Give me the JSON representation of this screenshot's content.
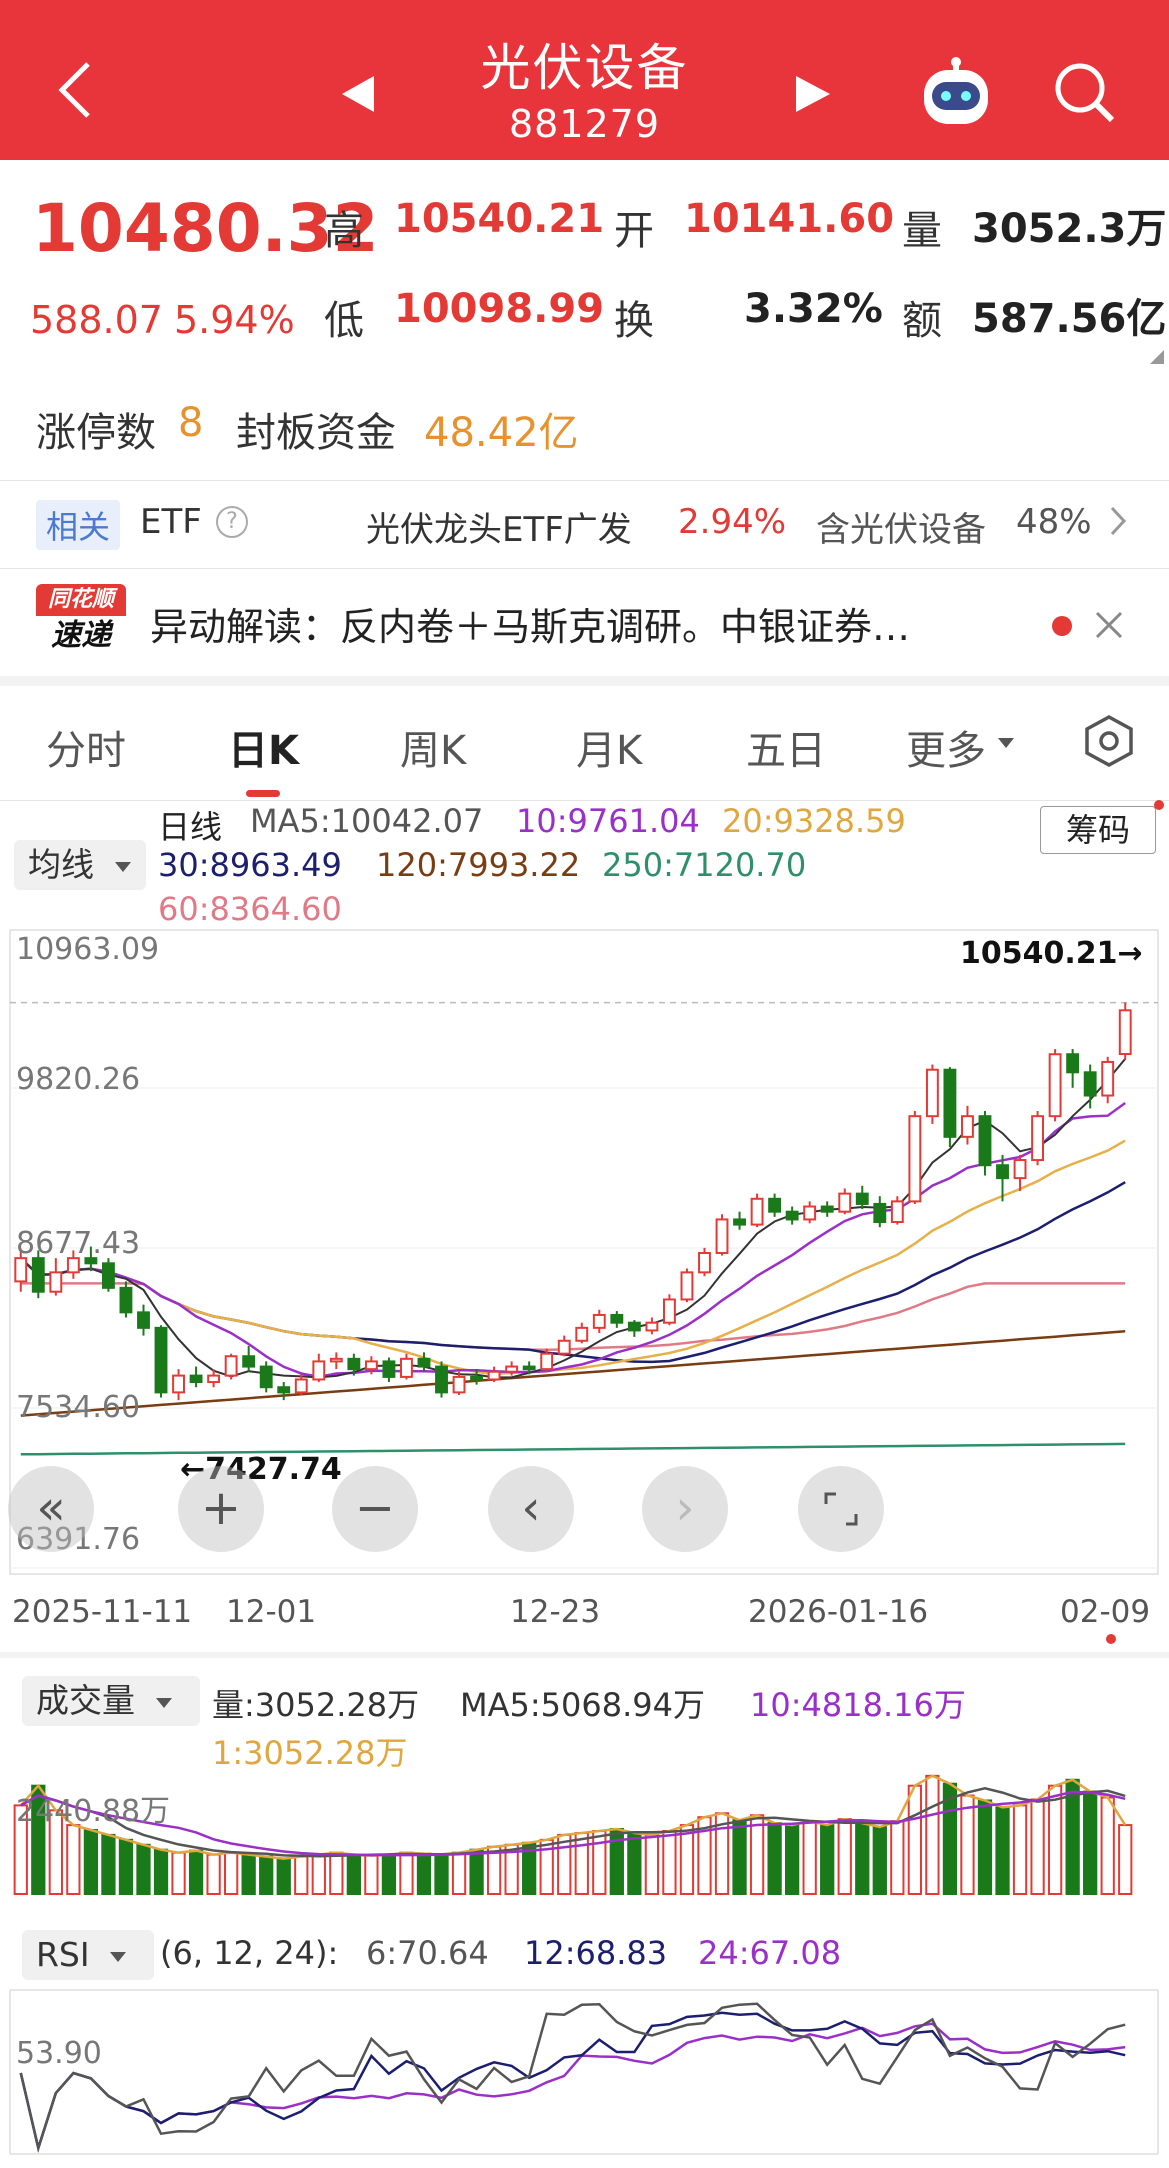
{
  "header": {
    "title": "光伏设备",
    "code": "881279"
  },
  "quote": {
    "price": "10480.32",
    "change": "588.07",
    "change_pct": "5.94%",
    "high_label": "高",
    "high": "10540.21",
    "open_label": "开",
    "open": "10141.60",
    "volume_label": "量",
    "volume": "3052.3万",
    "low_label": "低",
    "low": "10098.99",
    "turnover_label": "换",
    "turnover": "3.32%",
    "amount_label": "额",
    "amount": "587.56亿"
  },
  "limit": {
    "count_label": "涨停数",
    "count": "8",
    "seal_label": "封板资金",
    "seal_value": "48.42亿"
  },
  "etf": {
    "tag": "相关",
    "label": "ETF",
    "name": "光伏龙头ETF广发",
    "pct": "2.94%",
    "contain": "含光伏设备",
    "contain_pct": "48%"
  },
  "news": {
    "logo_top": "同花顺",
    "logo_bottom": "速递",
    "text": "异动解读：反内卷＋马斯克调研。中银证券…"
  },
  "tabs": [
    "分时",
    "日K",
    "周K",
    "月K",
    "五日",
    "更多"
  ],
  "active_tab": "日K",
  "ma": {
    "selector": "均线",
    "title": "日线",
    "chip": "筹码",
    "ma5": "MA5:10042.07",
    "ma10": "10:9761.04",
    "ma20": "20:9328.59",
    "ma30": "30:8963.49",
    "ma120": "120:7993.22",
    "ma250": "250:7120.70",
    "ma60": "60:8364.60"
  },
  "price_axis": [
    "10963.09",
    "9820.26",
    "8677.43",
    "7534.60",
    "6391.76"
  ],
  "high_marker": "10540.21→",
  "low_marker": "←7427.74",
  "dates": [
    "2025-11-11",
    "12-01",
    "12-23",
    "2026-01-16",
    "02-09"
  ],
  "volume": {
    "selector": "成交量",
    "vol": "量:3052.28万",
    "ma5": "MA5:5068.94万",
    "ma10": "10:4818.16万",
    "ma1": "1:3052.28万",
    "axis": "2440.88万"
  },
  "rsi": {
    "selector": "RSI",
    "params": "(6, 12, 24):",
    "r6": "6:70.64",
    "r12": "12:68.83",
    "r24": "24:67.08",
    "axis": "53.90"
  },
  "colors": {
    "header": "#e8353b",
    "up": "#e33a35",
    "down": "#1a7a1a",
    "ma5": "#333333",
    "ma10": "#9b30c8",
    "ma20": "#e6b04a",
    "ma30": "#1c1f6e",
    "ma60": "#e07a86",
    "ma120": "#7a3c12",
    "ma250": "#2e8f6a"
  },
  "chart_data": {
    "type": "candlestick",
    "ylim": [
      6391.76,
      10963.09
    ],
    "candles": [
      [
        8380,
        8560,
        8620,
        8300
      ],
      [
        8560,
        8300,
        8620,
        8250
      ],
      [
        8300,
        8450,
        8560,
        8270
      ],
      [
        8450,
        8560,
        8620,
        8400
      ],
      [
        8560,
        8520,
        8650,
        8460
      ],
      [
        8520,
        8330,
        8560,
        8300
      ],
      [
        8330,
        8140,
        8380,
        8100
      ],
      [
        8140,
        8020,
        8200,
        7960
      ],
      [
        8020,
        7520,
        8040,
        7480
      ],
      [
        7520,
        7650,
        7700,
        7460
      ],
      [
        7650,
        7600,
        7720,
        7560
      ],
      [
        7600,
        7650,
        7700,
        7560
      ],
      [
        7650,
        7800,
        7820,
        7620
      ],
      [
        7800,
        7720,
        7880,
        7680
      ],
      [
        7720,
        7560,
        7760,
        7520
      ],
      [
        7560,
        7520,
        7600,
        7460
      ],
      [
        7520,
        7620,
        7660,
        7500
      ],
      [
        7620,
        7760,
        7820,
        7600
      ],
      [
        7760,
        7780,
        7830,
        7700
      ],
      [
        7780,
        7700,
        7820,
        7650
      ],
      [
        7700,
        7760,
        7800,
        7660
      ],
      [
        7760,
        7640,
        7790,
        7600
      ],
      [
        7640,
        7780,
        7820,
        7620
      ],
      [
        7780,
        7720,
        7830,
        7680
      ],
      [
        7720,
        7520,
        7760,
        7480
      ],
      [
        7520,
        7640,
        7680,
        7500
      ],
      [
        7640,
        7620,
        7700,
        7580
      ],
      [
        7620,
        7680,
        7720,
        7600
      ],
      [
        7680,
        7720,
        7760,
        7650
      ],
      [
        7720,
        7700,
        7760,
        7660
      ],
      [
        7700,
        7820,
        7860,
        7680
      ],
      [
        7820,
        7920,
        7960,
        7800
      ],
      [
        7920,
        8020,
        8060,
        7900
      ],
      [
        8020,
        8120,
        8160,
        7980
      ],
      [
        8120,
        8060,
        8150,
        8020
      ],
      [
        8060,
        8000,
        8080,
        7950
      ],
      [
        8000,
        8060,
        8100,
        7970
      ],
      [
        8060,
        8240,
        8280,
        8040
      ],
      [
        8240,
        8450,
        8480,
        8220
      ],
      [
        8450,
        8600,
        8640,
        8420
      ],
      [
        8600,
        8860,
        8900,
        8580
      ],
      [
        8860,
        8820,
        8920,
        8780
      ],
      [
        8820,
        9020,
        9060,
        8800
      ],
      [
        9020,
        8920,
        9060,
        8880
      ],
      [
        8920,
        8860,
        8960,
        8820
      ],
      [
        8860,
        8960,
        9000,
        8830
      ],
      [
        8960,
        8920,
        9000,
        8880
      ],
      [
        8920,
        9060,
        9100,
        8900
      ],
      [
        9060,
        8980,
        9120,
        8940
      ],
      [
        8980,
        8840,
        9040,
        8800
      ],
      [
        8840,
        9000,
        9040,
        8820
      ],
      [
        9000,
        9660,
        9700,
        8980
      ],
      [
        9660,
        10020,
        10060,
        9600
      ],
      [
        10020,
        9500,
        10040,
        9420
      ],
      [
        9500,
        9660,
        9740,
        9440
      ],
      [
        9660,
        9280,
        9700,
        9200
      ],
      [
        9280,
        9180,
        9360,
        9000
      ],
      [
        9180,
        9320,
        9360,
        9080
      ],
      [
        9320,
        9660,
        9700,
        9280
      ],
      [
        9660,
        10140,
        10180,
        9620
      ],
      [
        10140,
        10000,
        10180,
        9880
      ],
      [
        10000,
        9820,
        10060,
        9720
      ],
      [
        9820,
        10080,
        10120,
        9760
      ],
      [
        10141.6,
        10480.32,
        10540.21,
        10098.99
      ]
    ],
    "volume_ma_axis": "2440.88万",
    "rsi_range": [
      0,
      100
    ]
  }
}
